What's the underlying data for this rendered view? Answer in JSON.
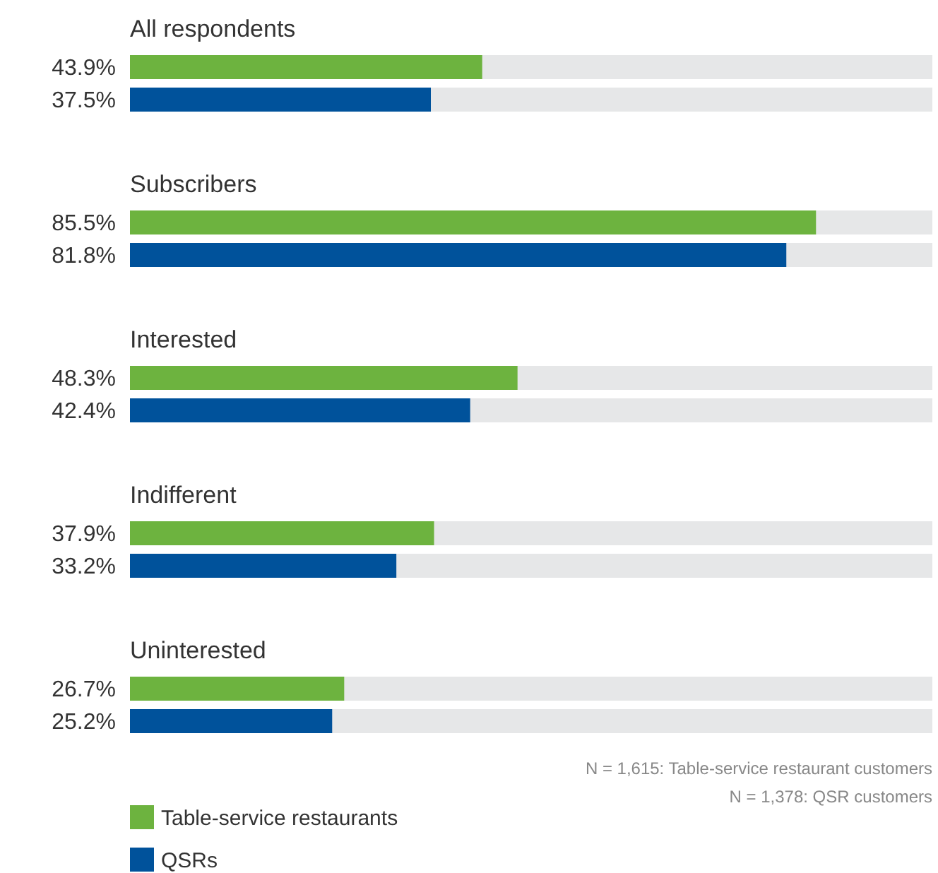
{
  "chart_data": {
    "type": "bar",
    "orientation": "horizontal",
    "categories": [
      "All respondents",
      "Subscribers",
      "Interested",
      "Indifferent",
      "Uninterested"
    ],
    "series": [
      {
        "name": "Table-service restaurants",
        "color": "#6db33f",
        "values": [
          43.9,
          85.5,
          48.3,
          37.9,
          26.7
        ],
        "value_labels": [
          "43.9%",
          "85.5%",
          "48.3%",
          "37.9%",
          "26.7%"
        ]
      },
      {
        "name": "QSRs",
        "color": "#00529b",
        "values": [
          37.5,
          81.8,
          42.4,
          33.2,
          25.2
        ],
        "value_labels": [
          "37.5%",
          "81.8%",
          "42.4%",
          "33.2%",
          "25.2%"
        ]
      }
    ],
    "xlim": [
      0,
      100
    ],
    "legend": "bottom left",
    "annotations": [
      "N = 1,615: Table-service restaurant customers",
      "N = 1,378: QSR customers"
    ]
  }
}
